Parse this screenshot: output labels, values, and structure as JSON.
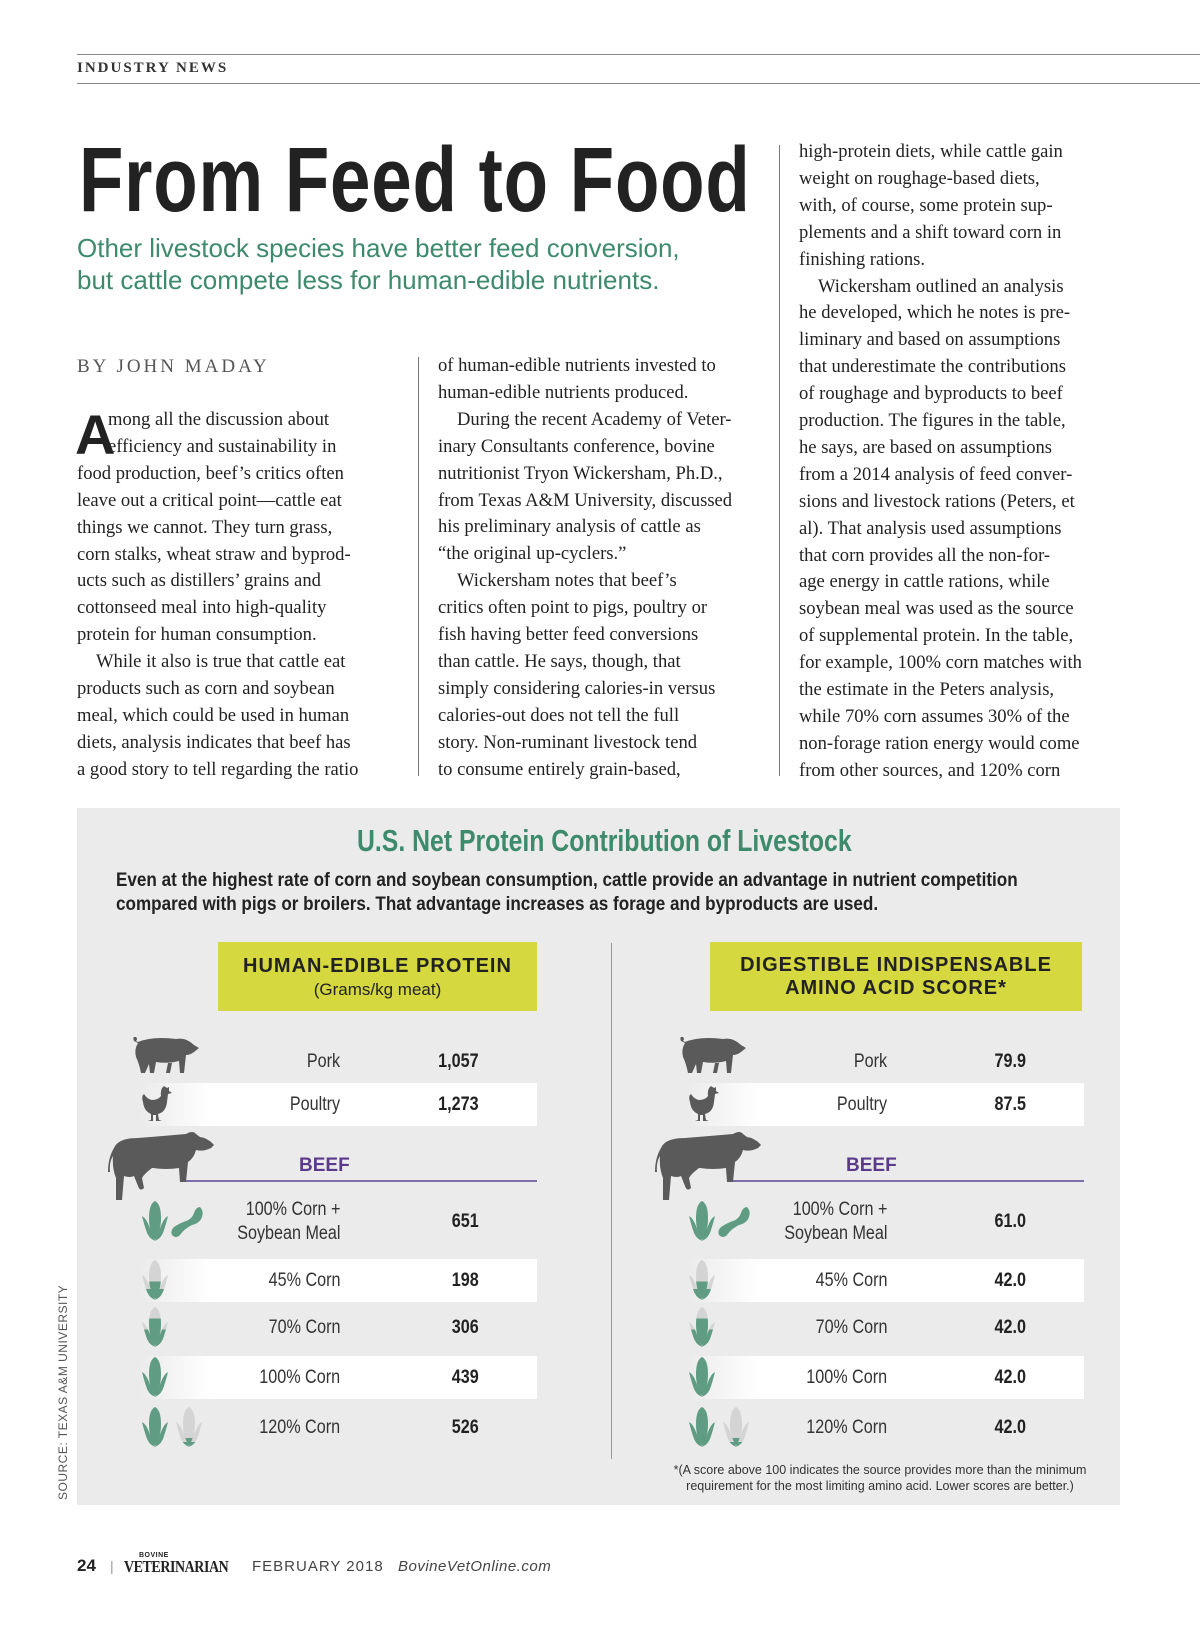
{
  "section": "INDUSTRY NEWS",
  "headline": "From Feed to Food",
  "subtitle": [
    "Other livestock species have better feed conversion,",
    "but cattle compete less for human-edible nutrients."
  ],
  "byline": "BY JOHN MADAY",
  "article": {
    "drop_cap": "A",
    "columns": [
      [
        {
          "text": "mong all the discussion about",
          "indent": "cap"
        },
        {
          "text": "efficiency and sustainability in",
          "indent": "cap"
        },
        {
          "text": "food production, beef’s critics often"
        },
        {
          "text": "leave out a critical point—cattle eat"
        },
        {
          "text": "things we cannot. They turn grass,"
        },
        {
          "text": "corn stalks, wheat straw and byprod-"
        },
        {
          "text": "ucts such as distillers’ grains and"
        },
        {
          "text": "cottonseed meal into high-quality"
        },
        {
          "text": "protein for human consumption."
        },
        {
          "text": "While it also is true that cattle eat",
          "indent": "para"
        },
        {
          "text": "products such as corn and soybean"
        },
        {
          "text": "meal, which could be used in human"
        },
        {
          "text": "diets, analysis indicates that beef has"
        },
        {
          "text": "a good story to tell regarding the ratio"
        }
      ],
      [
        {
          "text": "of human-edible nutrients invested to"
        },
        {
          "text": "human-edible nutrients produced."
        },
        {
          "text": "During the recent Academy of Veter-",
          "indent": "para"
        },
        {
          "text": "inary Consultants conference, bovine"
        },
        {
          "text": "nutritionist Tryon Wickersham, Ph.D.,"
        },
        {
          "text": "from Texas A&M University, discussed"
        },
        {
          "text": "his preliminary analysis of cattle as"
        },
        {
          "text": "“the original up-cyclers.”"
        },
        {
          "text": "Wickersham notes that beef’s",
          "indent": "para"
        },
        {
          "text": "critics often point to pigs, poultry or"
        },
        {
          "text": "fish having better feed conversions"
        },
        {
          "text": "than cattle. He says, though, that"
        },
        {
          "text": "simply considering calories-in versus"
        },
        {
          "text": "calories-out does not tell the full"
        },
        {
          "text": "story. Non-ruminant livestock tend"
        },
        {
          "text": "to consume entirely grain-based,"
        }
      ],
      [
        {
          "text": "high-protein diets, while cattle gain"
        },
        {
          "text": "weight on roughage-based diets,"
        },
        {
          "text": "with, of course, some protein sup-"
        },
        {
          "text": "plements and a shift toward corn in"
        },
        {
          "text": "finishing rations."
        },
        {
          "text": "Wickersham outlined an analysis",
          "indent": "para"
        },
        {
          "text": "he developed, which he notes is pre-"
        },
        {
          "text": "liminary and based on assumptions"
        },
        {
          "text": "that underestimate the contributions"
        },
        {
          "text": "of roughage and byproducts to beef"
        },
        {
          "text": "production. The figures in the table,"
        },
        {
          "text": "he says, are based on assumptions"
        },
        {
          "text": "from a 2014 analysis of feed conver-"
        },
        {
          "text": "sions and livestock rations (Peters, et"
        },
        {
          "text": "al). That analysis used assumptions"
        },
        {
          "text": "that corn provides all the non-for-"
        },
        {
          "text": "age energy in cattle rations, while"
        },
        {
          "text": "soybean meal was used as the source"
        },
        {
          "text": "of supplemental protein. In the table,"
        },
        {
          "text": "for example, 100% corn matches with"
        },
        {
          "text": "the estimate in the Peters analysis,"
        },
        {
          "text": "while 70% corn assumes 30% of the"
        },
        {
          "text": "non-forage ration energy would come"
        },
        {
          "text": "from other sources, and 120% corn"
        }
      ]
    ]
  },
  "infographic": {
    "title": "U.S. Net Protein Contribution of Livestock",
    "intro": [
      "Even at the highest rate of corn and soybean consumption, cattle provide an advantage in nutrient competition",
      "compared with pigs or broilers. That advantage increases as forage and byproducts are used."
    ],
    "colors": {
      "accent_green": "#3e8a6c",
      "header_yellow": "#d5d83e",
      "beef_purple": "#5b3a8c",
      "icon_gray": "#5a5a5a"
    },
    "beef_label": "BEEF",
    "tables": [
      {
        "header": [
          "HUMAN-EDIBLE PROTEIN"
        ],
        "subheader": "(Grams/kg meat)",
        "rows": [
          {
            "label": [
              "Pork"
            ],
            "value": "1,057",
            "icon": "pig-icon"
          },
          {
            "label": [
              "Poultry"
            ],
            "value": "1,273",
            "icon": "chicken-icon"
          },
          {
            "label": [
              "100% Corn +",
              "Soybean Meal"
            ],
            "value": "651",
            "icon": "corn-soybean-icon",
            "corn_fill": [
              1.0
            ]
          },
          {
            "label": [
              "45% Corn"
            ],
            "value": "198",
            "icon": "corn-icon",
            "corn_fill": [
              0.45
            ]
          },
          {
            "label": [
              "70% Corn"
            ],
            "value": "306",
            "icon": "corn-icon",
            "corn_fill": [
              0.7
            ]
          },
          {
            "label": [
              "100% Corn"
            ],
            "value": "439",
            "icon": "corn-icon",
            "corn_fill": [
              1.0
            ]
          },
          {
            "label": [
              "120% Corn"
            ],
            "value": "526",
            "icon": "corn-icon",
            "corn_fill": [
              1.0,
              0.2
            ]
          }
        ]
      },
      {
        "header": [
          "DIGESTIBLE INDISPENSABLE",
          "AMINO ACID SCORE*"
        ],
        "subheader": "",
        "rows": [
          {
            "label": [
              "Pork"
            ],
            "value": "79.9",
            "icon": "pig-icon"
          },
          {
            "label": [
              "Poultry"
            ],
            "value": "87.5",
            "icon": "chicken-icon"
          },
          {
            "label": [
              "100% Corn +",
              "Soybean Meal"
            ],
            "value": "61.0",
            "icon": "corn-soybean-icon",
            "corn_fill": [
              1.0
            ]
          },
          {
            "label": [
              "45% Corn"
            ],
            "value": "42.0",
            "icon": "corn-icon",
            "corn_fill": [
              0.45
            ]
          },
          {
            "label": [
              "70% Corn"
            ],
            "value": "42.0",
            "icon": "corn-icon",
            "corn_fill": [
              0.7
            ]
          },
          {
            "label": [
              "100% Corn"
            ],
            "value": "42.0",
            "icon": "corn-icon",
            "corn_fill": [
              1.0
            ]
          },
          {
            "label": [
              "120% Corn"
            ],
            "value": "42.0",
            "icon": "corn-icon",
            "corn_fill": [
              1.0,
              0.2
            ]
          }
        ]
      }
    ],
    "footnote": [
      "*(A score above 100 indicates the source provides more than the minimum",
      "requirement for the most limiting amino acid. Lower scores are better.)"
    ],
    "source": "SOURCE: TEXAS A&M UNIVERSITY"
  },
  "footer": {
    "page_number": "24",
    "separator": "|",
    "logo_small": "BOVINE",
    "logo_main": "VETERINARIAN",
    "date": "FEBRUARY 2018",
    "website": "BovineVetOnline.com"
  }
}
